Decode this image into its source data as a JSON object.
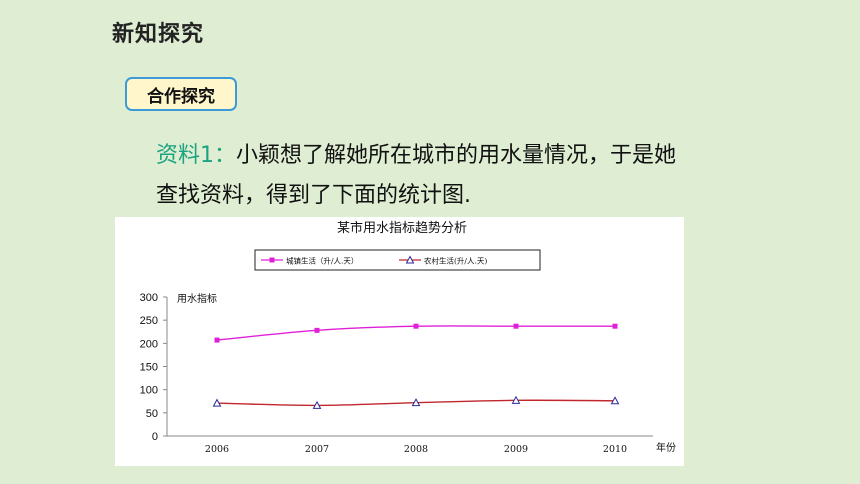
{
  "slide": {
    "title": "新知探究",
    "badge": "合作探究",
    "paragraph_prefix": "资料1：",
    "paragraph_line1": "小颖想了解她所在城市的用水量情况，于是她",
    "paragraph_line2": "查找资料，得到了下面的统计图."
  },
  "colors": {
    "background": "#dfeed3",
    "accent_green": "#1aa37f",
    "badge_border": "#3a9bd8",
    "badge_fill": "#fff6cc",
    "urban": "#e020d8",
    "rural": "#c0272d",
    "rural_marker": "#2a2a9a"
  },
  "chart_data": {
    "type": "line",
    "title": "某市用水指标趋势分析",
    "ylabel": "用水指标",
    "xlabel": "年份",
    "categories": [
      "2006",
      "2007",
      "2008",
      "2009",
      "2010"
    ],
    "yticks": [
      "300",
      "250",
      "200",
      "150",
      "100",
      "50",
      "0"
    ],
    "ylim": [
      0,
      300
    ],
    "legend_placement": "top",
    "series": [
      {
        "name": "城镇生活（升/人.天）",
        "values": [
          207,
          228,
          237,
          237,
          237
        ],
        "marker": "square"
      },
      {
        "name": "农村生活(升/人.天)",
        "values": [
          71,
          66,
          72,
          77,
          76
        ],
        "marker": "triangle"
      }
    ]
  }
}
